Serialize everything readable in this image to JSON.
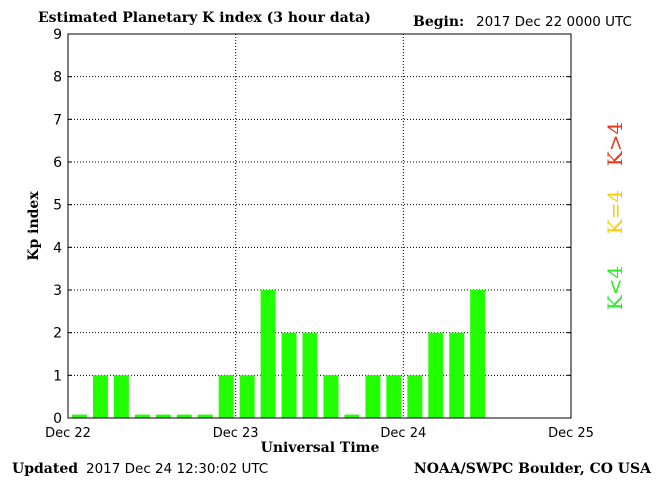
{
  "header": {
    "title": "Estimated Planetary K index (3 hour data)",
    "begin_label": "Begin:",
    "begin_value": "2017 Dec 22 0000 UTC"
  },
  "footer": {
    "updated_label": "Updated",
    "updated_value": "2017 Dec 24 12:30:02 UTC",
    "credit": "NOAA/SWPC Boulder, CO USA"
  },
  "legend": {
    "items": [
      {
        "label": "K<4",
        "color": "#22ee22"
      },
      {
        "label": "K=4",
        "color": "#ffcc00"
      },
      {
        "label": "K>4",
        "color": "#ee3311"
      }
    ]
  },
  "chart_data": {
    "type": "bar",
    "title": "Estimated Planetary K index (3 hour data)",
    "xlabel": "Universal Time",
    "ylabel": "Kp index",
    "ylim": [
      0,
      9
    ],
    "yticks": [
      "0",
      "1",
      "2",
      "3",
      "4",
      "5",
      "6",
      "7",
      "8",
      "9"
    ],
    "xticks": [
      "Dec 22",
      "Dec 23",
      "Dec 24",
      "Dec 25"
    ],
    "interval_hours": 3,
    "bar_color": "#22ff00",
    "values": [
      0,
      1,
      1,
      0,
      0,
      0,
      0,
      1,
      1,
      3,
      2,
      2,
      1,
      0,
      1,
      1,
      1,
      2,
      2,
      3
    ],
    "grid": true
  }
}
